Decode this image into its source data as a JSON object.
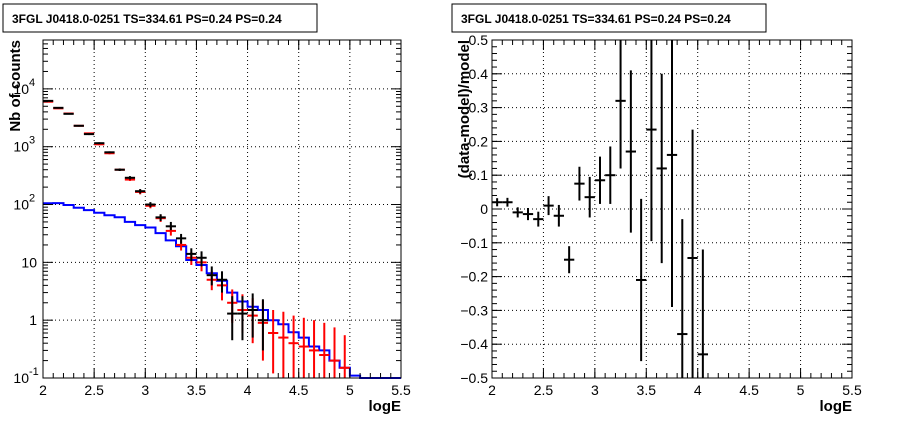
{
  "chart_data": [
    {
      "type": "line",
      "title": "3FGL J0418.0-0251 TS=334.61 PS=0.24 PS=0.24",
      "xlabel": "logE",
      "ylabel": "Nb of counts",
      "xlim": [
        2,
        5.5
      ],
      "ylim": [
        0.1,
        70000
      ],
      "yscale": "log",
      "grid": true,
      "x_ticks": [
        "2",
        "2.5",
        "3",
        "3.5",
        "4",
        "4.5",
        "5",
        "5.5"
      ],
      "y_ticks": [
        {
          "value": 0.1,
          "base": "10",
          "exp": "-1"
        },
        {
          "value": 1,
          "base": "1",
          "exp": ""
        },
        {
          "value": 10,
          "base": "10",
          "exp": ""
        },
        {
          "value": 100,
          "base": "10",
          "exp": "2"
        },
        {
          "value": 1000,
          "base": "10",
          "exp": "3"
        },
        {
          "value": 10000,
          "base": "10",
          "exp": "4"
        }
      ],
      "bin_width": 0.1,
      "series": [
        {
          "color": "#000000",
          "kind": "data-errorbars",
          "x": [
            2.05,
            2.15,
            2.25,
            2.35,
            2.45,
            2.55,
            2.65,
            2.75,
            2.85,
            2.95,
            3.05,
            3.15,
            3.25,
            3.35,
            3.45,
            3.55,
            3.65,
            3.75,
            3.85,
            3.95,
            4.05,
            4.15
          ],
          "y": [
            6200,
            4700,
            3700,
            2300,
            1650,
            1150,
            800,
            400,
            290,
            170,
            100,
            60,
            42,
            26,
            14,
            12,
            6,
            5,
            1.3,
            1.3,
            1.5,
            1.0
          ],
          "ylo": [
            6050,
            4580,
            3600,
            2230,
            1590,
            1110,
            770,
            380,
            270,
            155,
            90,
            52,
            36,
            21,
            10.5,
            8.5,
            4,
            3,
            0.45,
            0.45,
            0.5,
            0.3
          ],
          "yhi": [
            6350,
            4820,
            3800,
            2370,
            1710,
            1190,
            830,
            420,
            310,
            185,
            110,
            68,
            50,
            31,
            17.5,
            15.5,
            8.5,
            7,
            2.6,
            2.6,
            2.9,
            2.3
          ]
        },
        {
          "color": "#ff0000",
          "kind": "model-errorbars",
          "x": [
            2.05,
            2.15,
            2.25,
            2.35,
            2.45,
            2.55,
            2.65,
            2.75,
            2.85,
            2.95,
            3.05,
            3.15,
            3.25,
            3.35,
            3.45,
            3.55,
            3.65,
            3.75,
            3.85,
            3.95,
            4.05,
            4.15,
            4.25,
            4.35,
            4.45,
            4.55,
            4.65,
            4.75,
            4.85,
            4.95
          ],
          "y": [
            6000,
            4600,
            3750,
            2300,
            1700,
            1100,
            770,
            400,
            270,
            165,
            95,
            58,
            35,
            20,
            12,
            10,
            5,
            4,
            2,
            1.5,
            1.2,
            0.9,
            0.6,
            0.5,
            0.4,
            0.35,
            0.3,
            0.25,
            0.2,
            0.15
          ],
          "ylo": [
            5850,
            4480,
            3650,
            2230,
            1650,
            1060,
            740,
            380,
            255,
            150,
            86,
            50,
            29,
            16,
            9,
            7,
            3.3,
            2.2,
            0.9,
            0.6,
            0.4,
            0.2,
            0.12,
            0.1,
            0.1,
            0.1,
            0.1,
            0.1,
            0.1,
            0.1
          ],
          "yhi": [
            6150,
            4720,
            3850,
            2370,
            1750,
            1140,
            800,
            420,
            285,
            180,
            104,
            66,
            41,
            24,
            15,
            13,
            7,
            5.8,
            3.4,
            2.8,
            2.4,
            2.2,
            1.5,
            1.4,
            1.2,
            1.1,
            1.0,
            0.9,
            0.75,
            0.55
          ]
        },
        {
          "color": "#0000ff",
          "kind": "step",
          "x": [
            2.0,
            2.1,
            2.2,
            2.3,
            2.4,
            2.5,
            2.6,
            2.7,
            2.8,
            2.9,
            3.0,
            3.1,
            3.2,
            3.3,
            3.4,
            3.5,
            3.6,
            3.7,
            3.8,
            3.9,
            4.0,
            4.1,
            4.2,
            4.3,
            4.4,
            4.5,
            4.6,
            4.7,
            4.8,
            4.9,
            5.0,
            5.1,
            5.2,
            5.3,
            5.4
          ],
          "y": [
            105,
            106,
            98,
            88,
            80,
            72,
            65,
            60,
            50,
            44,
            40,
            32,
            24,
            19,
            11,
            9,
            6.5,
            4.8,
            3,
            2.1,
            1.7,
            1.5,
            1.0,
            0.85,
            0.62,
            0.5,
            0.35,
            0.3,
            0.2,
            0.15,
            0.11,
            0.1,
            0.1,
            0.1,
            0.1
          ]
        }
      ]
    },
    {
      "type": "scatter",
      "title": "3FGL J0418.0-0251 TS=334.61 PS=0.24 PS=0.24",
      "xlabel": "logE",
      "ylabel": "(data-model)/model",
      "xlim": [
        2,
        5.5
      ],
      "ylim": [
        -0.5,
        0.5
      ],
      "grid": true,
      "x_ticks": [
        "2",
        "2.5",
        "3",
        "3.5",
        "4",
        "4.5",
        "5",
        "5.5"
      ],
      "y_ticks": [
        "−0.5",
        "−0.4",
        "−0.3",
        "−0.2",
        "−0.1",
        "0",
        "0.1",
        "0.2",
        "0.3",
        "0.4",
        "0.5"
      ],
      "y_tick_values": [
        -0.5,
        -0.4,
        -0.3,
        -0.2,
        -0.1,
        0,
        0.1,
        0.2,
        0.3,
        0.4,
        0.5
      ],
      "bin_width": 0.1,
      "series": [
        {
          "color": "#000000",
          "kind": "residual-errorbars",
          "x": [
            2.05,
            2.15,
            2.25,
            2.35,
            2.45,
            2.55,
            2.65,
            2.75,
            2.85,
            2.95,
            3.05,
            3.15,
            3.25,
            3.35,
            3.45,
            3.55,
            3.65,
            3.75,
            3.85,
            3.95,
            4.05
          ],
          "y": [
            0.02,
            0.02,
            -0.01,
            -0.015,
            -0.03,
            0.01,
            -0.02,
            -0.15,
            0.075,
            0.035,
            0.085,
            0.1,
            0.32,
            0.17,
            -0.21,
            0.235,
            0.12,
            0.16,
            -0.37,
            -0.145,
            -0.43
          ],
          "err": [
            0.012,
            0.013,
            0.015,
            0.018,
            0.022,
            0.028,
            0.032,
            0.04,
            0.05,
            0.06,
            0.07,
            0.085,
            0.2,
            0.24,
            0.24,
            0.33,
            0.28,
            0.45,
            0.34,
            0.38,
            0.31
          ]
        }
      ]
    }
  ]
}
